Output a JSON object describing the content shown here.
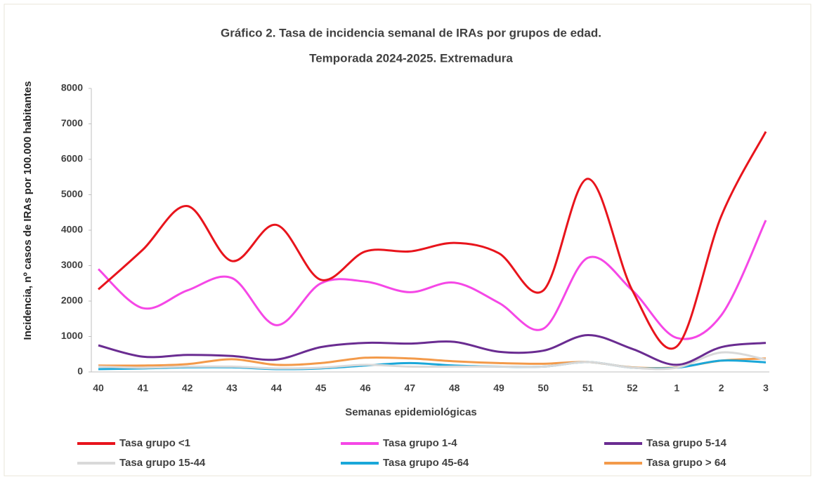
{
  "chart_data": {
    "type": "line",
    "title": "Gráfico 2. Tasa de incidencia semanal de IRAs por grupos de edad.",
    "subtitle": "Temporada 2024-2025. Extremadura",
    "y_label": "Incidencia,  nº casos de IRAs por 100.000 habitantes",
    "x_label": "Semanas epidemiológicas",
    "categories": [
      "40",
      "41",
      "42",
      "43",
      "44",
      "45",
      "46",
      "47",
      "48",
      "49",
      "50",
      "51",
      "52",
      "1",
      "2",
      "3"
    ],
    "ylim": [
      0,
      8000
    ],
    "yticks": [
      0,
      1000,
      2000,
      3000,
      4000,
      5000,
      6000,
      7000,
      8000
    ],
    "series": [
      {
        "name": "Tasa grupo <1",
        "color": "#e8141c",
        "values": [
          2330,
          3450,
          4680,
          3130,
          4150,
          2600,
          3400,
          3400,
          3640,
          3350,
          2300,
          5450,
          2300,
          720,
          4400,
          6780
        ]
      },
      {
        "name": "Tasa grupo 1-4",
        "color": "#f547e6",
        "values": [
          2900,
          1800,
          2300,
          2650,
          1320,
          2500,
          2550,
          2250,
          2520,
          1950,
          1220,
          3220,
          2300,
          960,
          1600,
          4280
        ]
      },
      {
        "name": "Tasa grupo 5-14",
        "color": "#6a2c91",
        "values": [
          750,
          430,
          480,
          450,
          350,
          700,
          820,
          800,
          850,
          570,
          600,
          1040,
          650,
          200,
          700,
          820
        ]
      },
      {
        "name": "Tasa grupo 15-44",
        "color": "#d9d9d9",
        "values": [
          150,
          120,
          150,
          150,
          100,
          120,
          200,
          150,
          150,
          150,
          150,
          280,
          120,
          120,
          550,
          350
        ]
      },
      {
        "name": "Tasa grupo 45-64",
        "color": "#1aa7d9",
        "values": [
          80,
          100,
          130,
          130,
          80,
          100,
          180,
          250,
          180,
          150,
          150,
          280,
          120,
          120,
          320,
          270
        ]
      },
      {
        "name": "Tasa grupo > 64",
        "color": "#f39a4a",
        "values": [
          180,
          180,
          220,
          360,
          200,
          250,
          400,
          380,
          300,
          250,
          230,
          280,
          130,
          130,
          320,
          380
        ]
      }
    ]
  }
}
